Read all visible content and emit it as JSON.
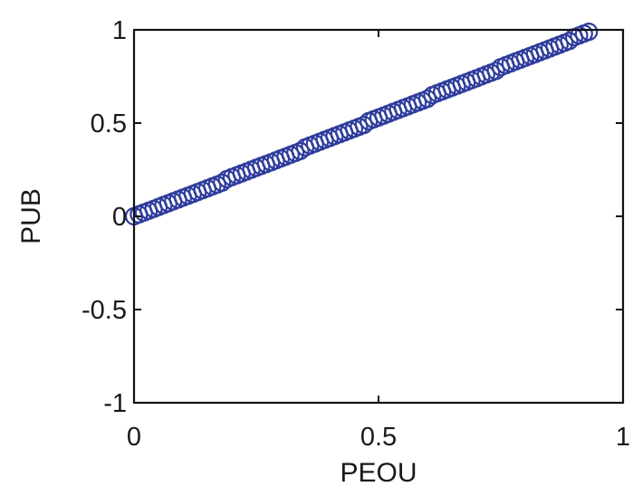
{
  "colors": {
    "marker": "#2f3d9c",
    "axis": "#111111",
    "background": "#ffffff"
  },
  "chart_data": {
    "type": "scatter",
    "title": "",
    "xlabel": "PEOU",
    "ylabel": "PUB",
    "xlim": [
      0,
      1
    ],
    "ylim": [
      -1,
      1
    ],
    "grid": false,
    "marker": "open-circle",
    "x_ticks": [
      "0",
      "0.5",
      "1"
    ],
    "y_ticks": [
      "1",
      "0.5",
      "0",
      "-0.5",
      "-1"
    ],
    "x_tick_values": [
      0,
      0.5,
      1
    ],
    "y_tick_values": [
      1,
      0.5,
      0,
      -0.5,
      -1
    ],
    "series": [
      {
        "x": [
          0.0,
          0.01,
          0.02,
          0.03,
          0.04,
          0.05,
          0.06,
          0.07,
          0.08,
          0.09,
          0.1,
          0.11,
          0.12,
          0.13,
          0.14,
          0.15,
          0.16,
          0.17,
          0.18,
          0.19,
          0.2,
          0.21,
          0.22,
          0.23,
          0.24,
          0.25,
          0.26,
          0.27,
          0.28,
          0.29,
          0.3,
          0.31,
          0.32,
          0.33,
          0.34,
          0.35,
          0.36,
          0.37,
          0.38,
          0.39,
          0.4,
          0.41,
          0.42,
          0.43,
          0.44,
          0.45,
          0.46,
          0.47,
          0.48,
          0.49,
          0.5,
          0.51,
          0.52,
          0.53,
          0.54,
          0.55,
          0.56,
          0.57,
          0.58,
          0.59,
          0.6,
          0.61,
          0.62,
          0.63,
          0.64,
          0.65,
          0.66,
          0.67,
          0.68,
          0.69,
          0.7,
          0.71,
          0.72,
          0.73,
          0.74,
          0.75,
          0.76,
          0.77,
          0.78,
          0.79,
          0.8,
          0.81,
          0.82,
          0.83,
          0.84,
          0.85,
          0.86,
          0.87,
          0.88,
          0.89,
          0.9,
          0.91,
          0.92,
          0.93
        ],
        "y": [
          0.0,
          0.01,
          0.02,
          0.03,
          0.04,
          0.05,
          0.06,
          0.07,
          0.08,
          0.09,
          0.1,
          0.11,
          0.12,
          0.13,
          0.14,
          0.15,
          0.16,
          0.17,
          0.18,
          0.2,
          0.21,
          0.22,
          0.23,
          0.24,
          0.25,
          0.26,
          0.27,
          0.28,
          0.29,
          0.3,
          0.31,
          0.32,
          0.33,
          0.34,
          0.35,
          0.37,
          0.38,
          0.39,
          0.4,
          0.41,
          0.42,
          0.43,
          0.44,
          0.45,
          0.46,
          0.47,
          0.48,
          0.49,
          0.51,
          0.52,
          0.53,
          0.54,
          0.55,
          0.56,
          0.57,
          0.58,
          0.59,
          0.6,
          0.61,
          0.62,
          0.63,
          0.65,
          0.66,
          0.67,
          0.68,
          0.69,
          0.7,
          0.71,
          0.72,
          0.73,
          0.74,
          0.75,
          0.76,
          0.77,
          0.78,
          0.8,
          0.81,
          0.82,
          0.83,
          0.84,
          0.85,
          0.86,
          0.87,
          0.88,
          0.89,
          0.9,
          0.91,
          0.92,
          0.93,
          0.94,
          0.96,
          0.97,
          0.98,
          0.99
        ]
      }
    ]
  }
}
